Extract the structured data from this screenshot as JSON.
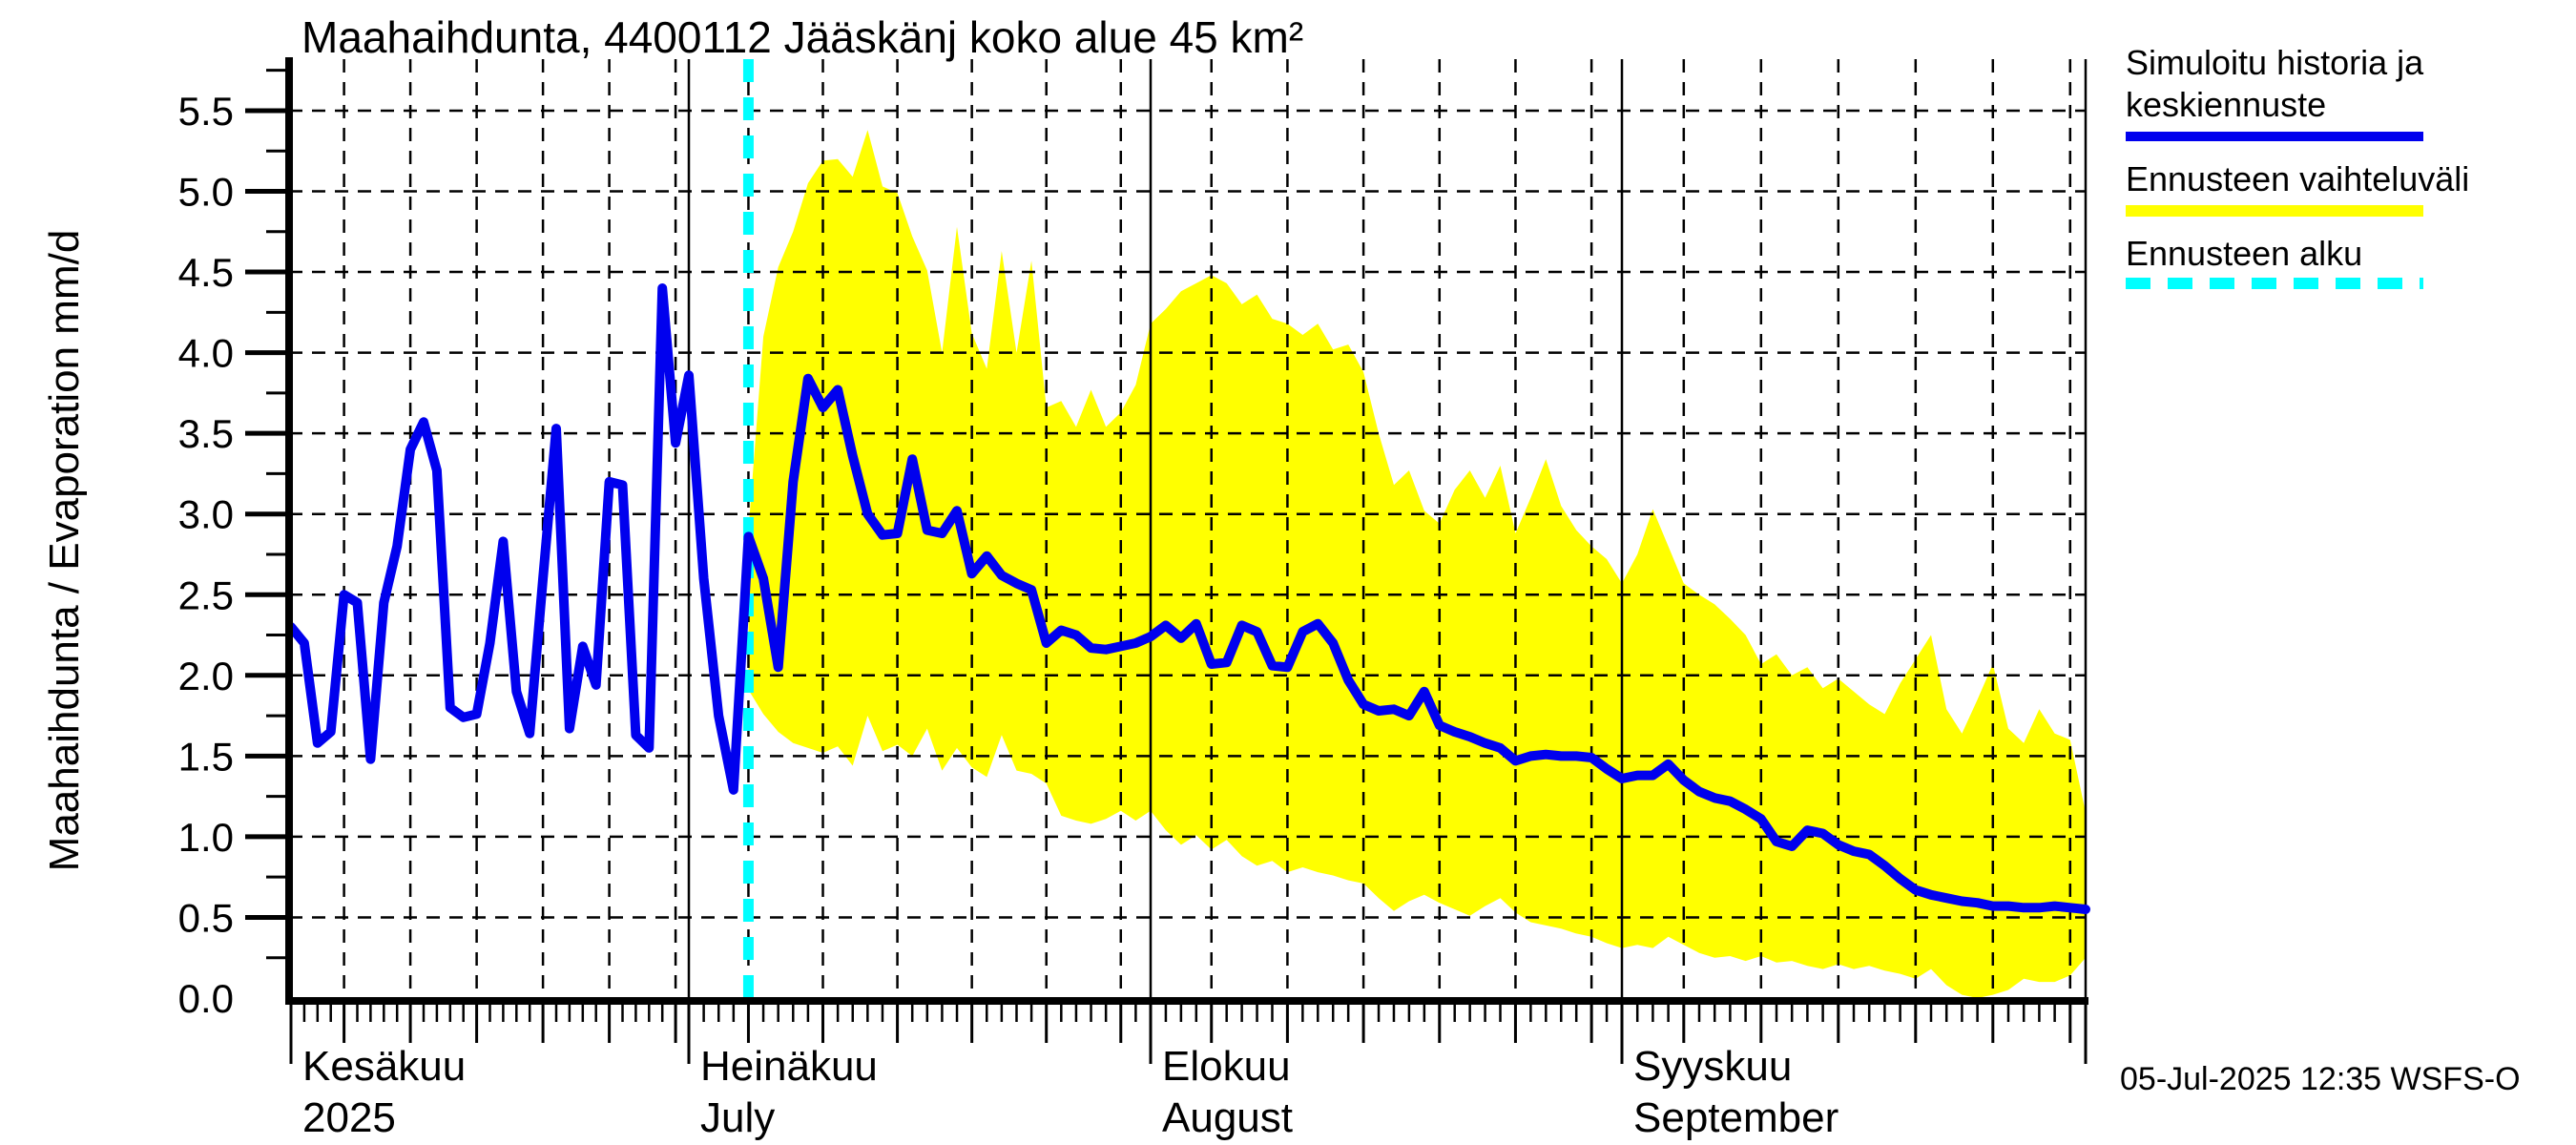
{
  "title": "Maahaihdunta, 4400112 Jääskänj koko alue 45 km²",
  "y_axis_label": "Maahaihdunta / Evaporation  mm/d",
  "timestamp": "05-Jul-2025 12:35 WSFS-O",
  "legend": {
    "history_line1": "Simuloitu historia ja",
    "history_line2": "keskiennuste",
    "range_label": "Ennusteen vaihteluväli",
    "start_label": "Ennusteen alku"
  },
  "colors": {
    "history_median": "#0000EE",
    "forecast_range": "#FFFF00",
    "forecast_start": "#00FFFF",
    "grid": "#000000"
  },
  "chart_data": {
    "type": "line",
    "title": "Maahaihdunta, 4400112 Jääskänj koko alue 45 km²",
    "ylabel": "Maahaihdunta / Evaporation  mm/d",
    "unit": "mm/d",
    "ylim": [
      0,
      5.82
    ],
    "grid": "dashed",
    "legend_position": "top-right",
    "x_start_date": "2025-06-01",
    "x_end_date": "2025-10-01",
    "forecast_start_date": "2025-07-05",
    "forecast_start_day": 34,
    "ytick_labels": [
      "0.0",
      "0.5",
      "1.0",
      "1.5",
      "2.0",
      "2.5",
      "3.0",
      "3.5",
      "4.0",
      "4.5",
      "5.0",
      "5.5"
    ],
    "months": [
      {
        "line1": "Kesäkuu",
        "line2": "2025",
        "start_day": 0,
        "days": 30
      },
      {
        "line1": "Heinäkuu",
        "line2": "July",
        "start_day": 30,
        "days": 31
      },
      {
        "line1": "Elokuu",
        "line2": "August",
        "start_day": 61,
        "days": 31
      },
      {
        "line1": "Syyskuu",
        "line2": "September",
        "start_day": 92,
        "days": 30
      }
    ],
    "series": [
      {
        "name": "Simuloitu historia ja keskiennuste",
        "color": "#0000EE",
        "start_day": 0,
        "values": [
          2.3,
          2.2,
          1.58,
          1.65,
          2.5,
          2.45,
          1.48,
          2.45,
          2.8,
          3.4,
          3.57,
          3.27,
          1.8,
          1.74,
          1.76,
          2.2,
          2.83,
          1.9,
          1.64,
          2.6,
          3.53,
          1.67,
          2.18,
          1.94,
          3.2,
          3.18,
          1.63,
          1.55,
          4.4,
          3.44,
          3.86,
          2.6,
          1.75,
          1.29,
          2.86,
          2.6,
          2.05,
          3.2,
          3.84,
          3.66,
          3.77,
          3.36,
          3.0,
          2.87,
          2.88,
          3.34,
          2.9,
          2.88,
          3.02,
          2.63,
          2.74,
          2.62,
          2.57,
          2.53,
          2.2,
          2.28,
          2.25,
          2.17,
          2.16,
          2.18,
          2.2,
          2.24,
          2.31,
          2.23,
          2.32,
          2.07,
          2.08,
          2.31,
          2.27,
          2.06,
          2.05,
          2.27,
          2.32,
          2.2,
          1.97,
          1.82,
          1.78,
          1.79,
          1.75,
          1.9,
          1.69,
          1.65,
          1.62,
          1.58,
          1.55,
          1.47,
          1.5,
          1.51,
          1.5,
          1.5,
          1.49,
          1.42,
          1.36,
          1.38,
          1.38,
          1.45,
          1.35,
          1.28,
          1.24,
          1.22,
          1.17,
          1.11,
          0.97,
          0.94,
          1.04,
          1.02,
          0.95,
          0.91,
          0.89,
          0.82,
          0.74,
          0.67,
          0.64,
          0.62,
          0.6,
          0.59,
          0.57,
          0.57,
          0.56,
          0.56,
          0.57,
          0.56,
          0.55
        ]
      },
      {
        "name": "Ennusteen vaihteluväli (yläraja)",
        "color": "#FFFF00",
        "start_day": 34,
        "values": [
          2.9,
          4.1,
          4.53,
          4.75,
          5.05,
          5.19,
          5.2,
          5.09,
          5.38,
          5.03,
          4.99,
          4.72,
          4.51,
          4.0,
          4.78,
          4.12,
          3.9,
          4.63,
          4.0,
          4.57,
          3.66,
          3.7,
          3.54,
          3.77,
          3.54,
          3.63,
          3.8,
          4.18,
          4.27,
          4.38,
          4.43,
          4.48,
          4.43,
          4.3,
          4.36,
          4.21,
          4.18,
          4.11,
          4.18,
          4.02,
          4.05,
          3.88,
          3.5,
          3.18,
          3.27,
          3.02,
          2.94,
          3.15,
          3.27,
          3.1,
          3.3,
          2.88,
          3.1,
          3.34,
          3.05,
          2.9,
          2.8,
          2.72,
          2.57,
          2.75,
          3.03,
          2.8,
          2.57,
          2.5,
          2.44,
          2.35,
          2.25,
          2.07,
          2.13,
          2.0,
          2.05,
          1.92,
          1.98,
          1.9,
          1.82,
          1.76,
          1.95,
          2.1,
          2.25,
          1.79,
          1.64,
          1.85,
          2.07,
          1.67,
          1.58,
          1.79,
          1.64,
          1.6,
          1.15
        ]
      },
      {
        "name": "Ennusteen vaihteluväli (alaraja)",
        "color": "#FFFF00",
        "start_day": 34,
        "values": [
          1.91,
          1.76,
          1.65,
          1.58,
          1.55,
          1.52,
          1.56,
          1.44,
          1.75,
          1.53,
          1.57,
          1.5,
          1.67,
          1.41,
          1.55,
          1.43,
          1.37,
          1.63,
          1.41,
          1.39,
          1.33,
          1.13,
          1.1,
          1.08,
          1.11,
          1.16,
          1.1,
          1.16,
          1.04,
          0.95,
          1.01,
          0.92,
          0.98,
          0.88,
          0.82,
          0.85,
          0.78,
          0.81,
          0.78,
          0.76,
          0.73,
          0.71,
          0.62,
          0.54,
          0.6,
          0.64,
          0.59,
          0.55,
          0.51,
          0.57,
          0.62,
          0.53,
          0.47,
          0.45,
          0.43,
          0.4,
          0.38,
          0.34,
          0.31,
          0.33,
          0.31,
          0.38,
          0.33,
          0.28,
          0.25,
          0.26,
          0.23,
          0.26,
          0.22,
          0.23,
          0.2,
          0.18,
          0.21,
          0.18,
          0.2,
          0.17,
          0.15,
          0.12,
          0.18,
          0.08,
          0.02,
          0.0,
          0.02,
          0.05,
          0.12,
          0.1,
          0.1,
          0.14,
          0.25
        ]
      }
    ]
  }
}
